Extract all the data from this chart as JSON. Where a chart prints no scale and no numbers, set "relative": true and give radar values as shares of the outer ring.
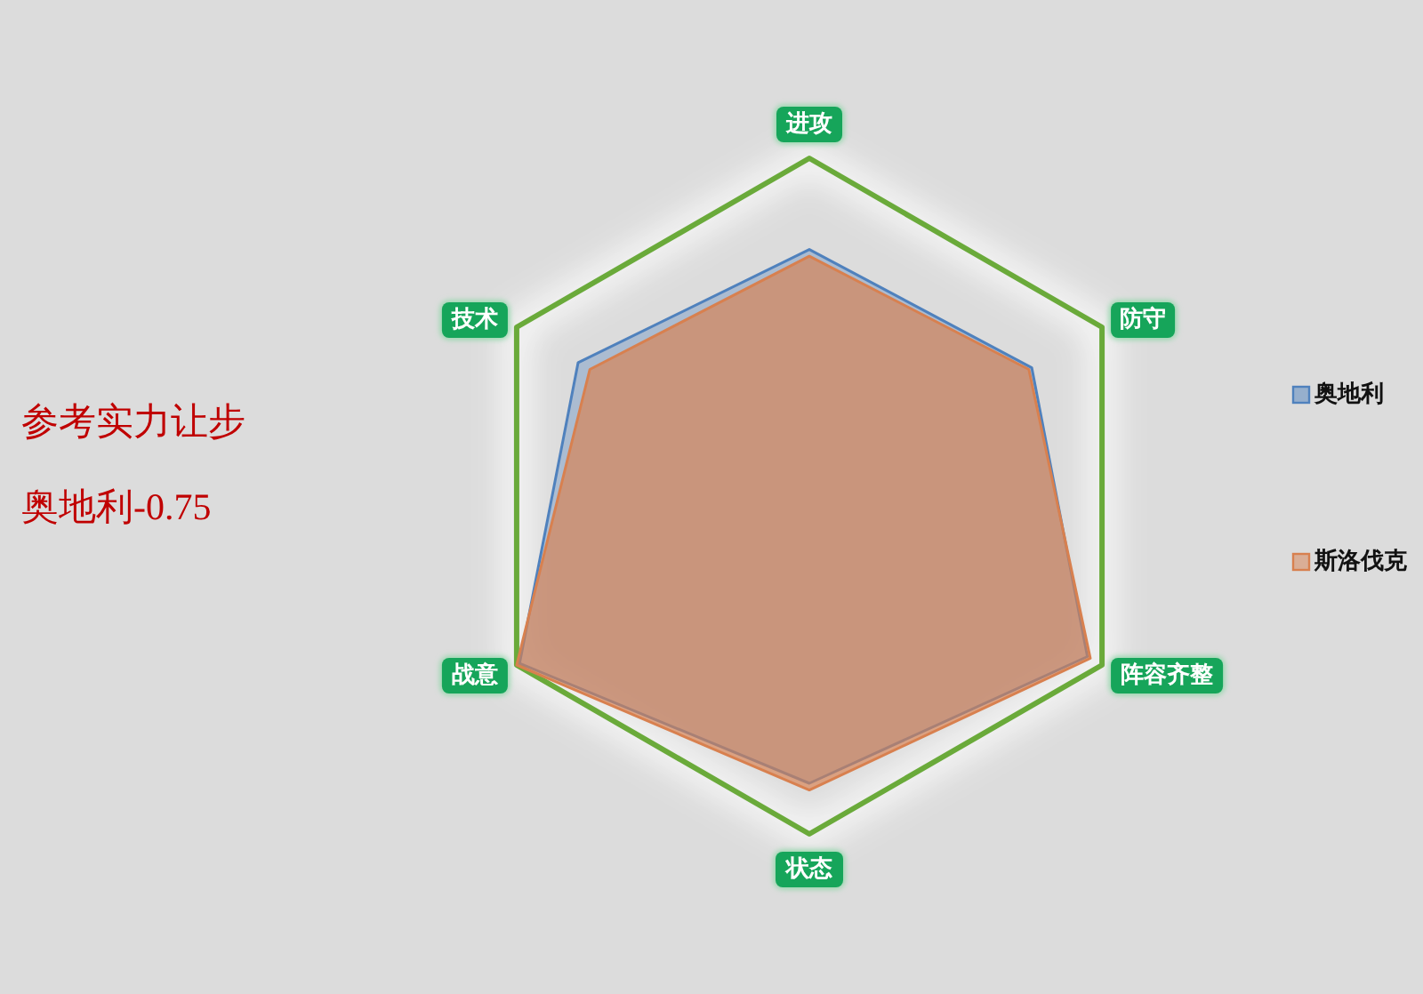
{
  "chart_data": {
    "type": "radar",
    "relative": true,
    "grid": true,
    "legend": "right",
    "categories": [
      "进攻",
      "防守",
      "阵容齐整",
      "状态",
      "战意",
      "技术"
    ],
    "series": [
      {
        "name": "奥地利",
        "color": "#4f81bd",
        "values": [
          0.73,
          0.76,
          0.95,
          0.85,
          0.99,
          0.79
        ]
      },
      {
        "name": "斯洛伐克",
        "color": "#d8804f",
        "values": [
          0.71,
          0.75,
          0.96,
          0.87,
          1.0,
          0.75
        ]
      }
    ],
    "annotations": [
      "参考实力让步",
      "奥地利-0.75"
    ]
  }
}
